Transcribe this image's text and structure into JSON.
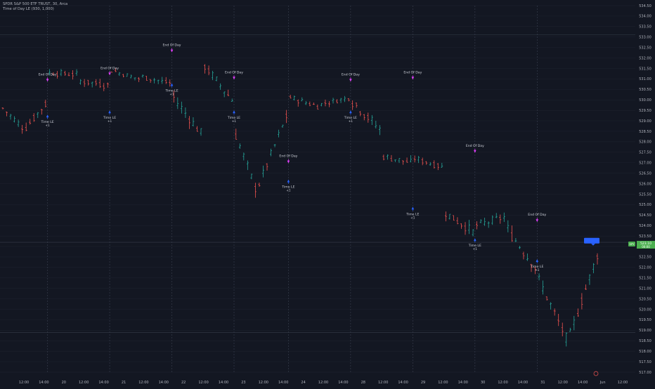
{
  "legend": {
    "symbol_line": "SPDR S&P 500 ETF TRUST, 30, Arca",
    "indicator_line": "Time of Day LE (930, 1,000)"
  },
  "colors": {
    "background": "#131722",
    "grid": "#1f2430",
    "up_bar": "#26a69a",
    "down_bar": "#ef5350",
    "entry_marker": "#2962ff",
    "exit_marker": "#e040fb",
    "signal_text": "#d1d4dc",
    "price_tag_blue": "#2962ff",
    "price_tag_green": "#4caf50"
  },
  "chart_data": {
    "type": "ohlc",
    "price_scale": {
      "min": 517.0,
      "max": 534.5,
      "tick_step": 0.5,
      "labels": [
        "534.50",
        "534.00",
        "533.50",
        "533.00",
        "532.50",
        "532.00",
        "531.50",
        "531.00",
        "530.50",
        "530.00",
        "529.50",
        "529.00",
        "528.50",
        "528.00",
        "527.50",
        "527.00",
        "526.50",
        "526.00",
        "525.50",
        "525.00",
        "524.50",
        "524.00",
        "523.50",
        "523.00",
        "522.50",
        "522.00",
        "521.50",
        "521.00",
        "520.50",
        "520.00",
        "519.50",
        "519.00",
        "518.50",
        "518.00",
        "517.50",
        "517.00"
      ]
    },
    "time_axis": {
      "labels": [
        "12:00",
        "14:00",
        "20",
        "12:00",
        "14:00",
        "21",
        "12:00",
        "14:00",
        "22",
        "12:00",
        "14:00",
        "23",
        "12:00",
        "14:00",
        "24",
        "12:00",
        "14:00",
        "28",
        "12:00",
        "14:00",
        "29",
        "12:00",
        "14:00",
        "30",
        "12:00",
        "14:00",
        "31",
        "12:00",
        "14:00",
        "Jun",
        "12:00"
      ],
      "day_labels": [
        "20",
        "21",
        "22",
        "23",
        "24",
        "28",
        "29",
        "30",
        "31",
        "Jun"
      ]
    },
    "series": [
      {
        "segments": [
          {
            "n": 6,
            "start": 529.6,
            "end": 528.7,
            "amp": 0.35
          },
          {
            "n": 6,
            "start": 528.7,
            "end": 529.8,
            "amp": 0.4
          },
          {
            "n": 8,
            "start": 531.3,
            "end": 531.2,
            "amp": 0.3
          },
          {
            "n": 8,
            "start": 530.9,
            "end": 530.7,
            "amp": 0.35
          },
          {
            "n": 8,
            "start": 531.4,
            "end": 531.0,
            "amp": 0.25
          },
          {
            "n": 8,
            "start": 531.1,
            "end": 530.8,
            "amp": 0.3
          },
          {
            "n": 8,
            "start": 530.1,
            "end": 528.4,
            "amp": 0.5
          },
          {
            "n": 8,
            "start": 531.6,
            "end": 530.0,
            "amp": 0.45
          },
          {
            "n": 6,
            "start": 528.3,
            "end": 525.8,
            "amp": 0.5
          },
          {
            "n": 8,
            "start": 526.0,
            "end": 529.2,
            "amp": 0.45
          },
          {
            "n": 8,
            "start": 530.1,
            "end": 529.7,
            "amp": 0.3
          },
          {
            "n": 8,
            "start": 529.8,
            "end": 530.1,
            "amp": 0.25
          },
          {
            "n": 8,
            "start": 529.9,
            "end": 528.6,
            "amp": 0.5
          },
          {
            "n": 8,
            "start": 527.3,
            "end": 527.0,
            "amp": 0.35
          },
          {
            "n": 8,
            "start": 527.2,
            "end": 526.8,
            "amp": 0.3
          },
          {
            "n": 8,
            "start": 524.6,
            "end": 523.7,
            "amp": 0.45
          },
          {
            "n": 8,
            "start": 524.0,
            "end": 524.4,
            "amp": 0.4
          },
          {
            "n": 8,
            "start": 523.8,
            "end": 522.0,
            "amp": 0.6
          },
          {
            "n": 8,
            "start": 521.4,
            "end": 518.6,
            "amp": 0.55
          },
          {
            "n": 8,
            "start": 518.8,
            "end": 522.6,
            "amp": 0.5
          }
        ]
      }
    ],
    "signals": [
      {
        "day": "20",
        "exit_label": "End Of Day",
        "exit_price": 530.7,
        "entry_label": "Time LE",
        "entry_qty": "+1",
        "entry_price": 529.4
      },
      {
        "day": "21",
        "exit_label": "End Of Day",
        "exit_price": 531.0,
        "entry_label": "Time LE",
        "entry_qty": "+1",
        "entry_price": 529.6
      },
      {
        "day": "22",
        "exit_label": "End Of Day",
        "exit_price": 532.1,
        "entry_label": "Time LE",
        "entry_qty": "+1",
        "entry_price": 530.9
      },
      {
        "day": "23",
        "exit_label": "End Of Day",
        "exit_price": 530.8,
        "entry_label": "Time LE",
        "entry_qty": "+1",
        "entry_price": 529.6
      },
      {
        "day": "24",
        "exit_label": "End Of Day",
        "exit_price": 526.8,
        "entry_label": "Time LE",
        "entry_qty": "+1",
        "entry_price": 526.3
      },
      {
        "day": "28",
        "exit_label": "End Of Day",
        "exit_price": 530.7,
        "entry_label": "Time LE",
        "entry_qty": "+1",
        "entry_price": 529.6
      },
      {
        "day": "29",
        "exit_label": "End Of Day",
        "exit_price": 530.8,
        "entry_label": "Time LE",
        "entry_qty": "+1",
        "entry_price": 525.0
      },
      {
        "day": "30",
        "exit_label": "End Of Day",
        "exit_price": 527.3,
        "entry_label": "Time LE",
        "entry_qty": "+1",
        "entry_price": 523.5
      },
      {
        "day": "31",
        "exit_label": "End Of Day",
        "exit_price": 524.0,
        "entry_label": "Time LE",
        "entry_qty": "+1",
        "entry_price": 522.5
      }
    ],
    "horizontal_lines": [
      533.1,
      523.2,
      518.9
    ],
    "last_price": {
      "value": "523.10",
      "sub": "00:00"
    },
    "current_marker": {
      "value": "523.21",
      "sub": "23:45"
    },
    "tag_badge": "SPY"
  }
}
